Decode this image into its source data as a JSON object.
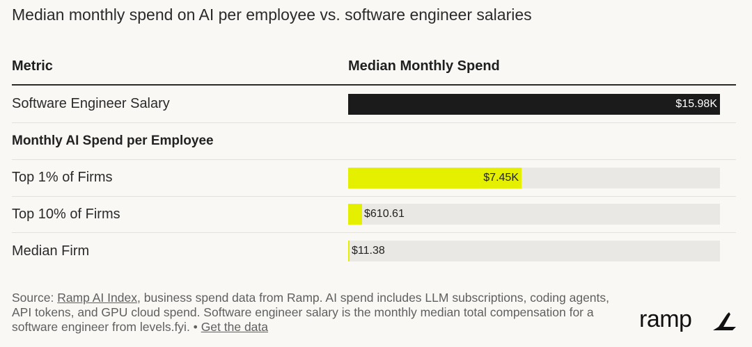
{
  "title": "Median monthly spend on AI per employee vs. software engineer salaries",
  "table": {
    "col_metric": "Metric",
    "col_spend": "Median Monthly Spend",
    "section_label": "Monthly AI Spend per Employee"
  },
  "colors": {
    "salary_bar": "#1b1b1b",
    "ai_bar": "#e4f000",
    "track": "#e9e8e4"
  },
  "chart_data": {
    "type": "bar",
    "title": "Median monthly spend on AI per employee vs. software engineer salaries",
    "xlabel": "Median Monthly Spend",
    "ylabel": "Metric",
    "xlim": [
      0,
      15980
    ],
    "orientation": "horizontal",
    "categories": [
      "Software Engineer Salary",
      "Top 1% of Firms",
      "Top 10% of Firms",
      "Median Firm"
    ],
    "values": [
      15980,
      7450,
      610.61,
      11.38
    ],
    "labels": [
      "$15.98K",
      "$7.45K",
      "$610.61",
      "$11.38"
    ]
  },
  "footer": {
    "prefix": "Source: ",
    "link_index": "Ramp AI Index",
    "body": ", business spend data from Ramp. AI spend includes LLM subscriptions, coding agents, API tokens, and GPU cloud spend. Software engineer salary is the monthly median total compensation for a software engineer from levels.fyi. ",
    "bullet": "•",
    "link_data": "Get the data"
  },
  "logo": {
    "text": "ramp"
  }
}
